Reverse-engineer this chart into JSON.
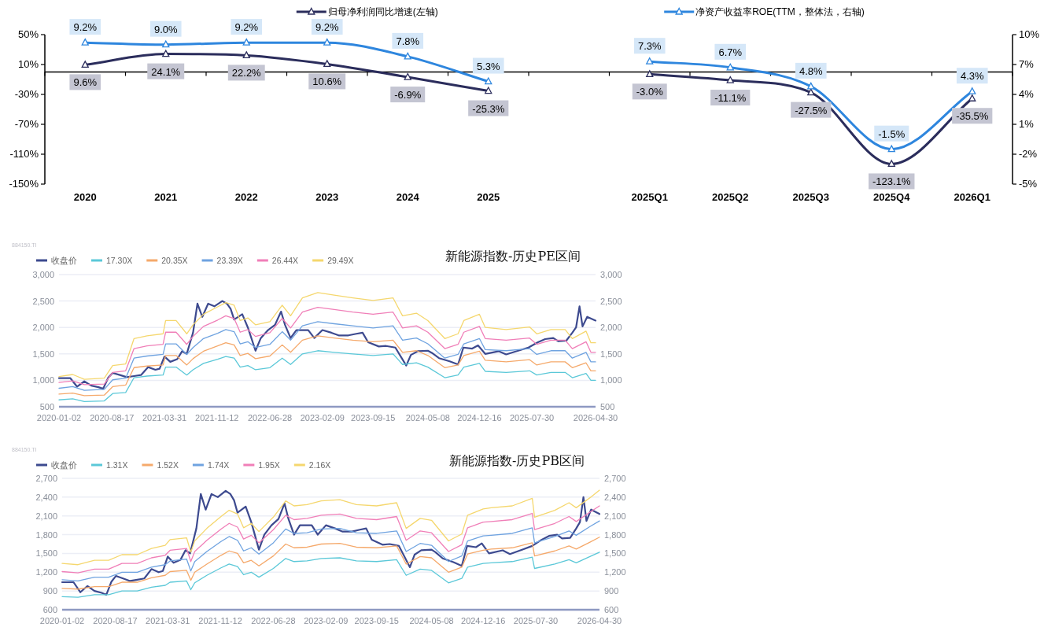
{
  "chart_data": [
    {
      "type": "line",
      "legend": "top",
      "marker": "triangle",
      "line_style": "solid",
      "categories": [
        "2020",
        "2021",
        "2022",
        "2023",
        "2024",
        "2025",
        null,
        "2025Q1",
        "2025Q2",
        "2025Q3",
        "2025Q4",
        "2026Q1"
      ],
      "ylim": [
        -150,
        50
      ],
      "yticks": [
        {
          "value": -150,
          "label": "-150%"
        },
        {
          "value": -110,
          "label": "-110%"
        },
        {
          "value": -70,
          "label": "-70%"
        },
        {
          "value": -30,
          "label": "-30%"
        },
        {
          "value": 10,
          "label": "10%"
        },
        {
          "value": 50,
          "label": "50%"
        }
      ],
      "y2lim": [
        -5,
        10
      ],
      "y2ticks": [
        {
          "value": -5,
          "label": "-5%"
        },
        {
          "value": -2,
          "label": "-2%"
        },
        {
          "value": 1,
          "label": "1%"
        },
        {
          "value": 4,
          "label": "4%"
        },
        {
          "value": 7,
          "label": "7%"
        },
        {
          "value": 10,
          "label": "10%"
        }
      ],
      "series": [
        {
          "name": "归母净利润同比增速(左轴)",
          "color": "#2b2d5c",
          "values": [
            9.6,
            24.1,
            22.2,
            10.6,
            -6.9,
            -25.3,
            null,
            -3.0,
            -11.1,
            -27.5,
            -123.1,
            -35.5
          ],
          "value_labels": [
            "9.6%",
            "24.1%",
            "22.2%",
            "10.6%",
            "-6.9%",
            "-25.3%",
            null,
            "-3.0%",
            "-11.1%",
            "-27.5%",
            "-123.1%",
            "-35.5%"
          ]
        },
        {
          "name": "净资产收益率ROE(TTM，整体法，右轴)",
          "color": "#2e86de",
          "axis": "y2",
          "values": [
            9.2,
            9.0,
            9.2,
            9.2,
            7.8,
            5.3,
            null,
            7.3,
            6.7,
            4.8,
            -1.5,
            4.3
          ],
          "value_labels": [
            "9.2%",
            "9.0%",
            "9.2%",
            "9.2%",
            "7.8%",
            "5.3%",
            null,
            "7.3%",
            "6.7%",
            "4.8%",
            "-1.5%",
            "4.3%"
          ]
        }
      ]
    },
    {
      "type": "line",
      "title": "新能源指数-历史PE区间",
      "annotations": [
        "884150.TI"
      ],
      "legend": "top left",
      "grid": "y",
      "xlim": [
        "2020-01-02",
        "2026-04-30"
      ],
      "xticks": [
        "2020-01-02",
        "2020-08-17",
        "2021-03-31",
        "2021-11-12",
        "2022-06-28",
        "2023-02-09",
        "2023-09-15",
        "2024-05-08",
        "2024-12-16",
        "2025-07-30",
        "2026-04-30"
      ],
      "ylim": [
        500,
        3000
      ],
      "yticks": [
        500,
        {
          "value": 1000,
          "label": "1,000"
        },
        {
          "value": 1500,
          "label": "1,500"
        },
        {
          "value": 2000,
          "label": "2,000"
        },
        {
          "value": 2500,
          "label": "2,500"
        },
        {
          "value": 3000,
          "label": "3,000"
        }
      ],
      "y2lim": [
        500,
        3000
      ],
      "y2ticks": [
        500,
        {
          "value": 1000,
          "label": "1,000"
        },
        {
          "value": 1500,
          "label": "1,500"
        },
        {
          "value": 2000,
          "label": "2,000"
        },
        {
          "value": 2500,
          "label": "2,500"
        },
        {
          "value": 3000,
          "label": "3,000"
        }
      ],
      "x": [
        "2020-01-02",
        "2020-03-01",
        "2020-04-20",
        "2020-07-15",
        "2020-08-20",
        "2020-10-15",
        "2020-11-20",
        "2021-01-15",
        "2021-03-25",
        "2021-04-05",
        "2021-05-20",
        "2021-07-05",
        "2021-08-01",
        "2021-09-15",
        "2021-11-15",
        "2021-12-20",
        "2022-01-25",
        "2022-02-20",
        "2022-03-25",
        "2022-04-27",
        "2022-06-28",
        "2022-08-20",
        "2022-09-25",
        "2022-11-15",
        "2023-01-20",
        "2023-04-01",
        "2023-06-20",
        "2023-09-15",
        "2023-12-10",
        "2024-01-20",
        "2024-03-20",
        "2024-05-08",
        "2024-07-20",
        "2024-09-15",
        "2024-10-10",
        "2024-12-16",
        "2025-01-10",
        "2025-04-10",
        "2025-07-20",
        "2025-08-20",
        "2025-10-20",
        "2025-12-20",
        "2026-01-20",
        "2026-03-20",
        "2026-04-10",
        "2026-04-30"
      ],
      "series": [
        {
          "name": "收盘价",
          "color": "#3d4a8f",
          "x": [
            "2020-01-02",
            "2020-02-20",
            "2020-03-20",
            "2020-04-20",
            "2020-05-20",
            "2020-06-20",
            "2020-07-10",
            "2020-08-01",
            "2020-08-20",
            "2020-09-20",
            "2020-10-20",
            "2020-11-20",
            "2020-12-20",
            "2021-01-20",
            "2021-02-20",
            "2021-03-10",
            "2021-03-31",
            "2021-04-25",
            "2021-05-25",
            "2021-06-15",
            "2021-07-05",
            "2021-08-01",
            "2021-08-20",
            "2021-09-10",
            "2021-10-05",
            "2021-11-01",
            "2021-12-05",
            "2021-12-25",
            "2022-01-10",
            "2022-01-25",
            "2022-03-01",
            "2022-03-25",
            "2022-04-27",
            "2022-05-20",
            "2022-06-20",
            "2022-07-20",
            "2022-08-15",
            "2022-09-01",
            "2022-09-25",
            "2022-10-20",
            "2022-12-10",
            "2023-01-05",
            "2023-02-09",
            "2023-03-20",
            "2023-04-20",
            "2023-06-01",
            "2023-07-05",
            "2023-08-01",
            "2023-08-25",
            "2023-10-10",
            "2023-11-10",
            "2023-12-20",
            "2024-02-05",
            "2024-02-25",
            "2024-03-25",
            "2024-05-08",
            "2024-05-25",
            "2024-06-25",
            "2024-08-10",
            "2024-09-15",
            "2024-10-08",
            "2024-11-15",
            "2024-12-10",
            "2025-01-10",
            "2025-03-10",
            "2025-04-10",
            "2025-06-01",
            "2025-07-15",
            "2025-08-25",
            "2025-09-25",
            "2025-10-30",
            "2025-11-20",
            "2025-12-25",
            "2026-01-20",
            "2026-02-05",
            "2026-02-20",
            "2026-03-05",
            "2026-03-25",
            "2026-04-30"
          ],
          "values": [
            1040,
            1040,
            880,
            980,
            900,
            870,
            840,
            1050,
            1140,
            1100,
            1060,
            1080,
            1100,
            1250,
            1200,
            1220,
            1450,
            1350,
            1400,
            1550,
            1500,
            1900,
            2450,
            2200,
            2450,
            2400,
            2500,
            2450,
            2350,
            2150,
            2250,
            2000,
            1560,
            1800,
            1950,
            2050,
            2300,
            2050,
            1800,
            1950,
            1950,
            1800,
            1950,
            1900,
            1850,
            1850,
            1880,
            1900,
            1720,
            1640,
            1650,
            1620,
            1280,
            1480,
            1550,
            1560,
            1520,
            1420,
            1360,
            1300,
            1620,
            1600,
            1660,
            1500,
            1550,
            1490,
            1560,
            1620,
            1720,
            1780,
            1800,
            1740,
            1750,
            1900,
            2000,
            2400,
            2020,
            2200,
            2130
          ]
        },
        {
          "name": "17.30X",
          "color": "#5bc8d8",
          "values": [
            630,
            650,
            600,
            610,
            750,
            770,
            1050,
            1080,
            1100,
            1250,
            1250,
            1100,
            1200,
            1320,
            1400,
            1450,
            1420,
            1250,
            1280,
            1200,
            1240,
            1420,
            1300,
            1500,
            1560,
            1530,
            1500,
            1470,
            1500,
            1300,
            1330,
            1250,
            1050,
            1100,
            1250,
            1320,
            1170,
            1150,
            1180,
            1100,
            1150,
            1150,
            1050,
            1130,
            1000,
            1000
          ]
        },
        {
          "name": "20.35X",
          "color": "#f5a96b",
          "values": [
            740,
            760,
            710,
            720,
            880,
            910,
            1240,
            1270,
            1290,
            1470,
            1470,
            1290,
            1410,
            1550,
            1650,
            1710,
            1670,
            1470,
            1510,
            1410,
            1460,
            1670,
            1530,
            1760,
            1840,
            1800,
            1760,
            1730,
            1760,
            1530,
            1560,
            1470,
            1240,
            1290,
            1470,
            1550,
            1380,
            1350,
            1390,
            1290,
            1350,
            1350,
            1240,
            1330,
            1180,
            1180
          ]
        },
        {
          "name": "23.39X",
          "color": "#6fa3e0",
          "values": [
            850,
            880,
            810,
            830,
            1010,
            1040,
            1420,
            1460,
            1490,
            1690,
            1690,
            1490,
            1620,
            1790,
            1890,
            1960,
            1920,
            1690,
            1730,
            1620,
            1680,
            1920,
            1760,
            2030,
            2110,
            2070,
            2030,
            1990,
            2030,
            1760,
            1800,
            1690,
            1420,
            1490,
            1690,
            1790,
            1580,
            1560,
            1600,
            1490,
            1560,
            1560,
            1420,
            1530,
            1350,
            1350
          ]
        },
        {
          "name": "26.44X",
          "color": "#f07fb8",
          "values": [
            960,
            990,
            920,
            930,
            1150,
            1180,
            1600,
            1650,
            1680,
            1910,
            1910,
            1680,
            1830,
            2020,
            2140,
            2220,
            2170,
            1910,
            1960,
            1830,
            1900,
            2170,
            1990,
            2290,
            2380,
            2340,
            2290,
            2250,
            2290,
            1990,
            2030,
            1910,
            1600,
            1680,
            1910,
            2020,
            1790,
            1760,
            1800,
            1680,
            1760,
            1760,
            1600,
            1730,
            1530,
            1530
          ]
        },
        {
          "name": "29.49X",
          "color": "#f5d76e",
          "values": [
            1070,
            1110,
            1020,
            1040,
            1280,
            1310,
            1790,
            1840,
            1880,
            2130,
            2130,
            1880,
            2050,
            2250,
            2390,
            2470,
            2420,
            2130,
            2180,
            2050,
            2110,
            2420,
            2220,
            2560,
            2660,
            2610,
            2560,
            2510,
            2560,
            2220,
            2270,
            2130,
            1790,
            1880,
            2130,
            2250,
            2000,
            1960,
            2010,
            1880,
            1960,
            1960,
            1790,
            1930,
            1710,
            1710
          ]
        }
      ]
    },
    {
      "type": "line",
      "title": "新能源指数-历史PB区间",
      "annotations": [
        "884150.TI"
      ],
      "legend": "top left",
      "grid": "y",
      "xlim": [
        "2020-01-02",
        "2026-04-30"
      ],
      "xticks": [
        "2020-01-02",
        "2020-08-17",
        "2021-03-31",
        "2021-11-12",
        "2022-06-28",
        "2023-02-09",
        "2023-09-15",
        "2024-05-08",
        "2024-12-16",
        "2025-07-30",
        "2026-04-30"
      ],
      "ylim": [
        600,
        2700
      ],
      "yticks": [
        600,
        900,
        {
          "value": 1200,
          "label": "1,200"
        },
        {
          "value": 1500,
          "label": "1,500"
        },
        {
          "value": 1800,
          "label": "1,800"
        },
        {
          "value": 2100,
          "label": "2,100"
        },
        {
          "value": 2400,
          "label": "2,400"
        },
        {
          "value": 2700,
          "label": "2,700"
        }
      ],
      "y2lim": [
        600,
        2700
      ],
      "y2ticks": [
        600,
        900,
        {
          "value": 1200,
          "label": "1,200"
        },
        {
          "value": 1500,
          "label": "1,500"
        },
        {
          "value": 1800,
          "label": "1,800"
        },
        {
          "value": 2100,
          "label": "2,100"
        },
        {
          "value": 2400,
          "label": "2,400"
        },
        {
          "value": 2700,
          "label": "2,700"
        }
      ],
      "x": [
        "2020-01-02",
        "2020-03-10",
        "2020-05-20",
        "2020-07-20",
        "2020-09-15",
        "2020-11-20",
        "2021-01-20",
        "2021-03-20",
        "2021-04-10",
        "2021-06-20",
        "2021-07-08",
        "2021-07-25",
        "2021-09-15",
        "2021-11-15",
        "2021-12-20",
        "2022-01-25",
        "2022-02-20",
        "2022-03-25",
        "2022-04-27",
        "2022-06-28",
        "2022-08-20",
        "2022-09-25",
        "2022-11-20",
        "2023-01-20",
        "2023-04-10",
        "2023-06-20",
        "2023-09-15",
        "2023-12-10",
        "2024-01-20",
        "2024-03-20",
        "2024-05-08",
        "2024-07-20",
        "2024-09-15",
        "2024-10-10",
        "2024-12-16",
        "2025-01-20",
        "2025-04-20",
        "2025-07-15",
        "2025-07-25",
        "2025-10-20",
        "2025-12-20",
        "2026-01-20",
        "2026-03-20",
        "2026-04-30"
      ],
      "series": [
        {
          "name": "收盘价",
          "color": "#3d4a8f",
          "x": [
            "2020-01-02",
            "2020-02-20",
            "2020-03-20",
            "2020-04-20",
            "2020-05-20",
            "2020-06-20",
            "2020-07-10",
            "2020-08-01",
            "2020-08-20",
            "2020-09-20",
            "2020-10-20",
            "2020-11-20",
            "2020-12-20",
            "2021-01-20",
            "2021-02-20",
            "2021-03-10",
            "2021-03-31",
            "2021-04-25",
            "2021-05-25",
            "2021-06-15",
            "2021-07-05",
            "2021-08-01",
            "2021-08-20",
            "2021-09-10",
            "2021-10-05",
            "2021-11-01",
            "2021-12-05",
            "2021-12-25",
            "2022-01-10",
            "2022-01-25",
            "2022-03-01",
            "2022-03-25",
            "2022-04-27",
            "2022-05-20",
            "2022-06-20",
            "2022-07-20",
            "2022-08-15",
            "2022-09-01",
            "2022-09-25",
            "2022-10-20",
            "2022-12-10",
            "2023-01-05",
            "2023-02-09",
            "2023-03-20",
            "2023-04-20",
            "2023-06-01",
            "2023-07-05",
            "2023-08-01",
            "2023-08-25",
            "2023-10-10",
            "2023-11-10",
            "2023-12-20",
            "2024-02-05",
            "2024-02-25",
            "2024-03-25",
            "2024-05-08",
            "2024-05-25",
            "2024-06-25",
            "2024-08-10",
            "2024-09-15",
            "2024-10-08",
            "2024-11-15",
            "2024-12-10",
            "2025-01-10",
            "2025-03-10",
            "2025-04-10",
            "2025-06-01",
            "2025-07-15",
            "2025-08-25",
            "2025-09-25",
            "2025-10-30",
            "2025-11-20",
            "2025-12-25",
            "2026-01-20",
            "2026-02-05",
            "2026-02-20",
            "2026-03-05",
            "2026-03-25",
            "2026-04-30"
          ],
          "values": [
            1040,
            1040,
            880,
            980,
            900,
            870,
            840,
            1050,
            1140,
            1100,
            1060,
            1080,
            1100,
            1250,
            1200,
            1220,
            1450,
            1350,
            1400,
            1550,
            1500,
            1900,
            2450,
            2200,
            2450,
            2400,
            2500,
            2450,
            2350,
            2150,
            2250,
            2000,
            1560,
            1800,
            1950,
            2050,
            2300,
            2050,
            1800,
            1950,
            1950,
            1800,
            1950,
            1900,
            1850,
            1850,
            1880,
            1900,
            1720,
            1640,
            1650,
            1620,
            1280,
            1480,
            1550,
            1560,
            1520,
            1420,
            1360,
            1300,
            1620,
            1600,
            1660,
            1500,
            1550,
            1490,
            1560,
            1620,
            1720,
            1780,
            1800,
            1740,
            1750,
            1900,
            2000,
            2400,
            2020,
            2200,
            2130
          ]
        },
        {
          "name": "1.31X",
          "color": "#5bc8d8",
          "values": [
            810,
            800,
            840,
            840,
            900,
            900,
            960,
            990,
            1040,
            1060,
            920,
            1030,
            1150,
            1270,
            1330,
            1290,
            1160,
            1200,
            1120,
            1260,
            1420,
            1370,
            1380,
            1420,
            1430,
            1380,
            1370,
            1400,
            1150,
            1250,
            1230,
            1030,
            1100,
            1280,
            1340,
            1350,
            1370,
            1440,
            1260,
            1330,
            1400,
            1350,
            1450,
            1520
          ]
        },
        {
          "name": "1.52X",
          "color": "#f5a96b",
          "values": [
            940,
            930,
            970,
            970,
            1040,
            1040,
            1110,
            1150,
            1210,
            1230,
            1070,
            1200,
            1330,
            1470,
            1540,
            1500,
            1350,
            1390,
            1300,
            1460,
            1650,
            1590,
            1600,
            1650,
            1660,
            1600,
            1590,
            1620,
            1330,
            1450,
            1430,
            1200,
            1280,
            1490,
            1550,
            1570,
            1590,
            1670,
            1460,
            1540,
            1620,
            1570,
            1680,
            1760
          ]
        },
        {
          "name": "1.74X",
          "color": "#6fa3e0",
          "values": [
            1080,
            1060,
            1120,
            1120,
            1200,
            1200,
            1280,
            1320,
            1380,
            1410,
            1220,
            1370,
            1530,
            1690,
            1770,
            1710,
            1540,
            1590,
            1490,
            1670,
            1890,
            1820,
            1830,
            1890,
            1900,
            1830,
            1820,
            1860,
            1530,
            1660,
            1630,
            1370,
            1460,
            1700,
            1780,
            1790,
            1820,
            1910,
            1670,
            1770,
            1860,
            1790,
            1930,
            2020
          ]
        },
        {
          "name": "1.95X",
          "color": "#f07fb8",
          "values": [
            1210,
            1190,
            1250,
            1250,
            1340,
            1340,
            1430,
            1470,
            1550,
            1580,
            1370,
            1530,
            1710,
            1890,
            1980,
            1920,
            1730,
            1790,
            1670,
            1880,
            2110,
            2040,
            2060,
            2110,
            2130,
            2060,
            2040,
            2090,
            1710,
            1860,
            1830,
            1530,
            1640,
            1910,
            2000,
            2010,
            2040,
            2140,
            1880,
            1980,
            2090,
            2010,
            2160,
            2260
          ]
        },
        {
          "name": "2.16X",
          "color": "#f5d76e",
          "values": [
            1340,
            1320,
            1390,
            1390,
            1480,
            1480,
            1580,
            1630,
            1720,
            1750,
            1520,
            1700,
            1900,
            2090,
            2190,
            2130,
            1910,
            1980,
            1850,
            2080,
            2340,
            2260,
            2280,
            2340,
            2360,
            2280,
            2260,
            2310,
            1900,
            2060,
            2030,
            1700,
            1810,
            2110,
            2210,
            2230,
            2260,
            2380,
            2080,
            2190,
            2310,
            2230,
            2390,
            2510
          ]
        }
      ]
    }
  ]
}
